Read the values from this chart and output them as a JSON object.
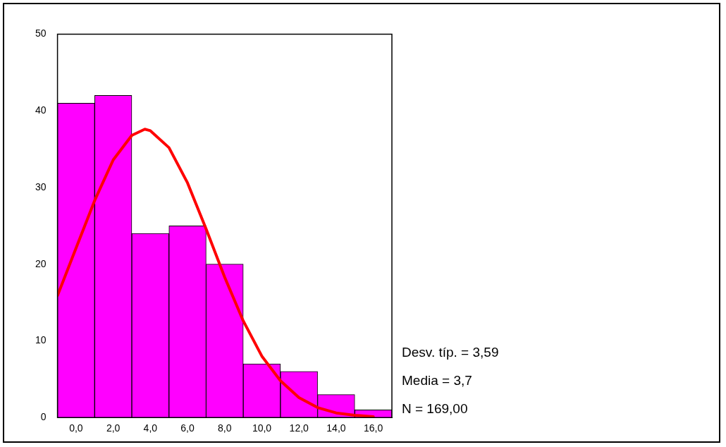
{
  "chart_data": {
    "type": "histogram",
    "bins": [
      -1,
      1,
      3,
      5,
      7,
      9,
      11,
      13,
      15,
      17
    ],
    "values": [
      41,
      42,
      24,
      25,
      20,
      7,
      6,
      3,
      1
    ],
    "color": "#ff00ff",
    "series": [
      {
        "type": "line",
        "color": "#ff0000",
        "x": [
          -1,
          0,
          1,
          2,
          3,
          3.7,
          4,
          5,
          6,
          7,
          8,
          9,
          10,
          11,
          12,
          13,
          14,
          15,
          16
        ],
        "values": [
          15.9,
          22.1,
          28.3,
          33.6,
          36.8,
          37.6,
          37.4,
          35.2,
          30.6,
          24.6,
          18.3,
          12.6,
          8.0,
          4.8,
          2.6,
          1.3,
          0.6,
          0.3,
          0.1
        ]
      }
    ],
    "xlim": [
      -1,
      17
    ],
    "xticks": [
      {
        "value": 0,
        "label": "0,0"
      },
      {
        "value": 2,
        "label": "2,0"
      },
      {
        "value": 4,
        "label": "4,0"
      },
      {
        "value": 6,
        "label": "6,0"
      },
      {
        "value": 8,
        "label": "8,0"
      },
      {
        "value": 10,
        "label": "10,0"
      },
      {
        "value": 12,
        "label": "12,0"
      },
      {
        "value": 14,
        "label": "14,0"
      },
      {
        "value": 16,
        "label": "16,0"
      }
    ],
    "ylim": [
      0,
      50
    ],
    "yticks": [
      0,
      10,
      20,
      30,
      40,
      50
    ],
    "grid": false,
    "legend": false,
    "marker": "none",
    "line_style": "solid",
    "annotations": [
      "Desv. típ. = 3,59",
      "Media = 3,7",
      "N = 169,00"
    ]
  }
}
